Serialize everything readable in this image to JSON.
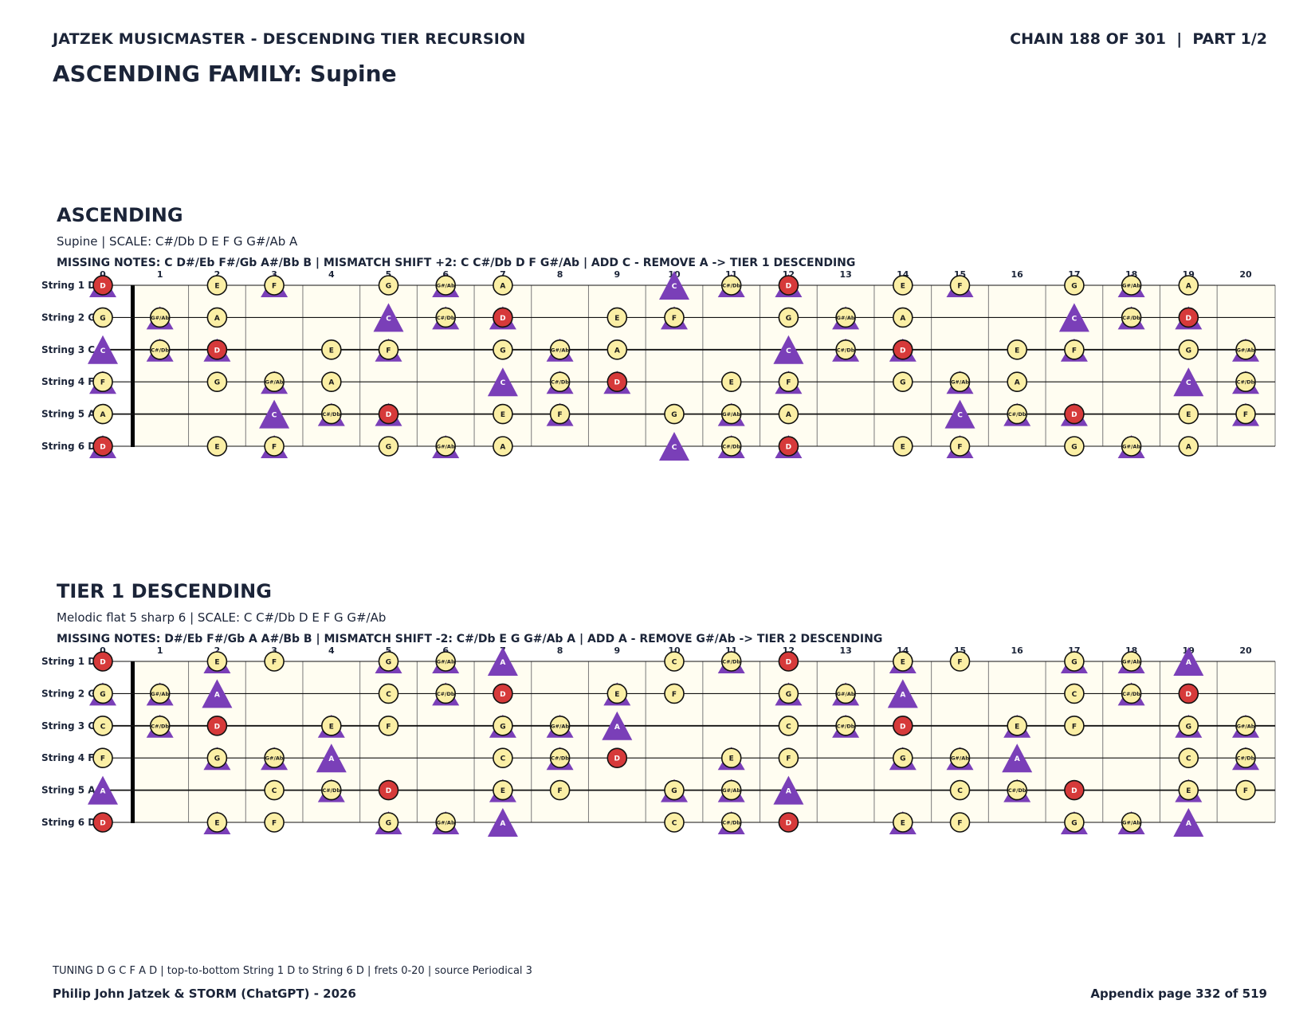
{
  "header": {
    "left": "JATZEK MUSICMASTER - DESCENDING TIER RECURSION",
    "right": "CHAIN 188 OF 301  |  PART 1/2"
  },
  "title": "ASCENDING FAMILY: Supine",
  "colors": {
    "root": "#d63a3a",
    "note": "#fbefa5",
    "marker": "#7a3fb8",
    "board": "#fffdf1",
    "text": "#1b2438"
  },
  "fretboard": {
    "strings": [
      "String 1 D",
      "String 2 G",
      "String 3 C",
      "String 4 F",
      "String 5 A",
      "String 6 D"
    ],
    "tuning": [
      "D",
      "G",
      "C",
      "F",
      "A",
      "D"
    ],
    "frets": [
      0,
      1,
      2,
      3,
      4,
      5,
      6,
      7,
      8,
      9,
      10,
      11,
      12,
      13,
      14,
      15,
      16,
      17,
      18,
      19,
      20
    ]
  },
  "sections": [
    {
      "title": "ASCENDING",
      "subtitle": "Supine  |  SCALE: C#/Db D E F G G#/Ab A",
      "missing": "MISSING NOTES: C D#/Eb F#/Gb A#/Bb B  |  MISMATCH SHIFT +2: C C#/Db D F G#/Ab  |  ADD C - REMOVE A -> TIER 1 DESCENDING",
      "root": "D",
      "scale_notes": [
        "C#/Db",
        "D",
        "E",
        "F",
        "G",
        "G#/Ab",
        "A"
      ],
      "marker_notes": [
        "C",
        "C#/Db",
        "D",
        "F",
        "G#/Ab"
      ],
      "triangle_only": [
        "C"
      ]
    },
    {
      "title": "TIER 1 DESCENDING",
      "subtitle": "Melodic flat 5 sharp 6  |  SCALE: C C#/Db D E F G G#/Ab",
      "missing": "MISSING NOTES: D#/Eb F#/Gb A A#/Bb B  |  MISMATCH SHIFT -2: C#/Db E G G#/Ab A  |  ADD A - REMOVE G#/Ab -> TIER 2 DESCENDING",
      "root": "D",
      "scale_notes": [
        "C",
        "C#/Db",
        "D",
        "E",
        "F",
        "G",
        "G#/Ab"
      ],
      "marker_notes": [
        "C#/Db",
        "E",
        "G",
        "G#/Ab",
        "A"
      ],
      "triangle_only": [
        "A"
      ]
    }
  ],
  "footer": {
    "note": "TUNING D G C F A D | top-to-bottom String 1 D to String 6 D | frets 0-20 | source Periodical 3",
    "left": "Philip John Jatzek & STORM (ChatGPT) - 2026",
    "right": "Appendix page 332 of 519"
  }
}
